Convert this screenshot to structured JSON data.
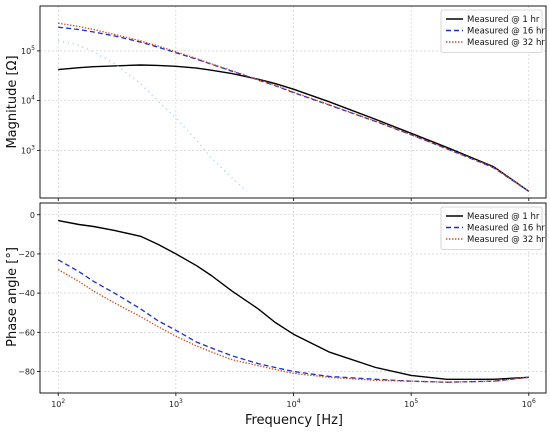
{
  "chart_data": [
    {
      "type": "line",
      "panel": "top",
      "xlabel": "",
      "ylabel": "Magnitude [Ω]",
      "xscale": "log",
      "yscale": "log",
      "xlim": [
        70,
        1400000
      ],
      "ylim": [
        110,
        800000
      ],
      "grid": true,
      "legend_position": "top-right",
      "yticks": [
        {
          "value": 1000,
          "label": "10^3"
        },
        {
          "value": 10000,
          "label": "10^4"
        },
        {
          "value": 100000,
          "label": "10^5"
        }
      ],
      "series": [
        {
          "name": "Measured @ 1 hr",
          "color": "#000000",
          "style": "solid",
          "x": [
            100,
            150,
            200,
            300,
            500,
            700,
            1000,
            1500,
            2000,
            3000,
            5000,
            7000,
            10000,
            20000,
            50000,
            100000,
            200000,
            500000,
            1000000
          ],
          "y": [
            42000,
            46000,
            48000,
            50000,
            52000,
            51000,
            49000,
            45000,
            41000,
            35000,
            27000,
            22000,
            17000,
            9500,
            4200,
            2200,
            1150,
            470,
            150
          ]
        },
        {
          "name": "Measured @ 16 hr",
          "color": "#1a2ecc",
          "style": "dashed",
          "x": [
            100,
            150,
            200,
            300,
            500,
            700,
            1000,
            1500,
            2000,
            3000,
            5000,
            7000,
            10000,
            20000,
            50000,
            100000,
            200000,
            500000,
            1000000
          ],
          "y": [
            300000,
            270000,
            240000,
            200000,
            150000,
            120000,
            92000,
            68000,
            54000,
            39000,
            26000,
            20000,
            14500,
            8200,
            3800,
            2050,
            1080,
            450,
            150
          ]
        },
        {
          "name": "Measured @ 32 hr",
          "color": "#d14a1e",
          "style": "dotted",
          "x": [
            100,
            150,
            200,
            300,
            500,
            700,
            1000,
            1500,
            2000,
            3000,
            5000,
            7000,
            10000,
            20000,
            50000,
            100000,
            200000,
            500000,
            1000000
          ],
          "y": [
            360000,
            310000,
            270000,
            215000,
            160000,
            126000,
            96000,
            70000,
            55000,
            40000,
            26500,
            20500,
            14800,
            8300,
            3850,
            2080,
            1090,
            455,
            152
          ]
        },
        {
          "name": "",
          "color": "#9fd4f2",
          "style": "dotted",
          "x": [
            100,
            150,
            200,
            300,
            500,
            700,
            1000,
            1500,
            2000,
            3000,
            4000
          ],
          "y": [
            160000,
            130000,
            95000,
            55000,
            22000,
            10000,
            4500,
            1600,
            700,
            280,
            150
          ]
        }
      ]
    },
    {
      "type": "line",
      "panel": "bottom",
      "xlabel": "Frequency [Hz]",
      "ylabel": "Phase angle [°]",
      "xscale": "log",
      "xlim": [
        70,
        1400000
      ],
      "ylim": [
        -91,
        6
      ],
      "grid": true,
      "legend_position": "top-right",
      "yticks": [
        {
          "value": 0,
          "label": "0"
        },
        {
          "value": -20,
          "label": "−20"
        },
        {
          "value": -40,
          "label": "−40"
        },
        {
          "value": -60,
          "label": "−60"
        },
        {
          "value": -80,
          "label": "−80"
        }
      ],
      "xticks": [
        {
          "value": 100,
          "label": "10^2"
        },
        {
          "value": 1000,
          "label": "10^3"
        },
        {
          "value": 10000,
          "label": "10^4"
        },
        {
          "value": 100000,
          "label": "10^5"
        },
        {
          "value": 1000000,
          "label": "10^6"
        }
      ],
      "series": [
        {
          "name": "Measured @ 1 hr",
          "color": "#000000",
          "style": "solid",
          "x": [
            100,
            150,
            200,
            300,
            500,
            700,
            1000,
            1500,
            2000,
            3000,
            5000,
            7000,
            10000,
            20000,
            50000,
            100000,
            200000,
            500000,
            1000000
          ],
          "y": [
            -3,
            -5,
            -6,
            -8,
            -11,
            -15,
            -20,
            -26,
            -31,
            -39,
            -48,
            -55,
            -61,
            -70,
            -78,
            -82,
            -84,
            -84,
            -83
          ]
        },
        {
          "name": "Measured @ 16 hr",
          "color": "#1a2ecc",
          "style": "dashed",
          "x": [
            100,
            150,
            200,
            300,
            500,
            700,
            1000,
            1500,
            2000,
            3000,
            5000,
            7000,
            10000,
            20000,
            50000,
            100000,
            200000,
            500000,
            1000000
          ],
          "y": [
            -23,
            -29,
            -34,
            -40,
            -48,
            -54,
            -59,
            -65,
            -68,
            -72,
            -76,
            -78,
            -80,
            -82.5,
            -84,
            -85,
            -85.5,
            -85,
            -83
          ]
        },
        {
          "name": "Measured @ 32 hr",
          "color": "#d14a1e",
          "style": "dotted",
          "x": [
            100,
            150,
            200,
            300,
            500,
            700,
            1000,
            1500,
            2000,
            3000,
            5000,
            7000,
            10000,
            20000,
            50000,
            100000,
            200000,
            500000,
            1000000
          ],
          "y": [
            -28,
            -34,
            -39,
            -45,
            -52,
            -57,
            -62,
            -67,
            -70,
            -74,
            -77,
            -79,
            -81,
            -83,
            -84.5,
            -85,
            -85.5,
            -85,
            -83
          ]
        }
      ]
    }
  ]
}
